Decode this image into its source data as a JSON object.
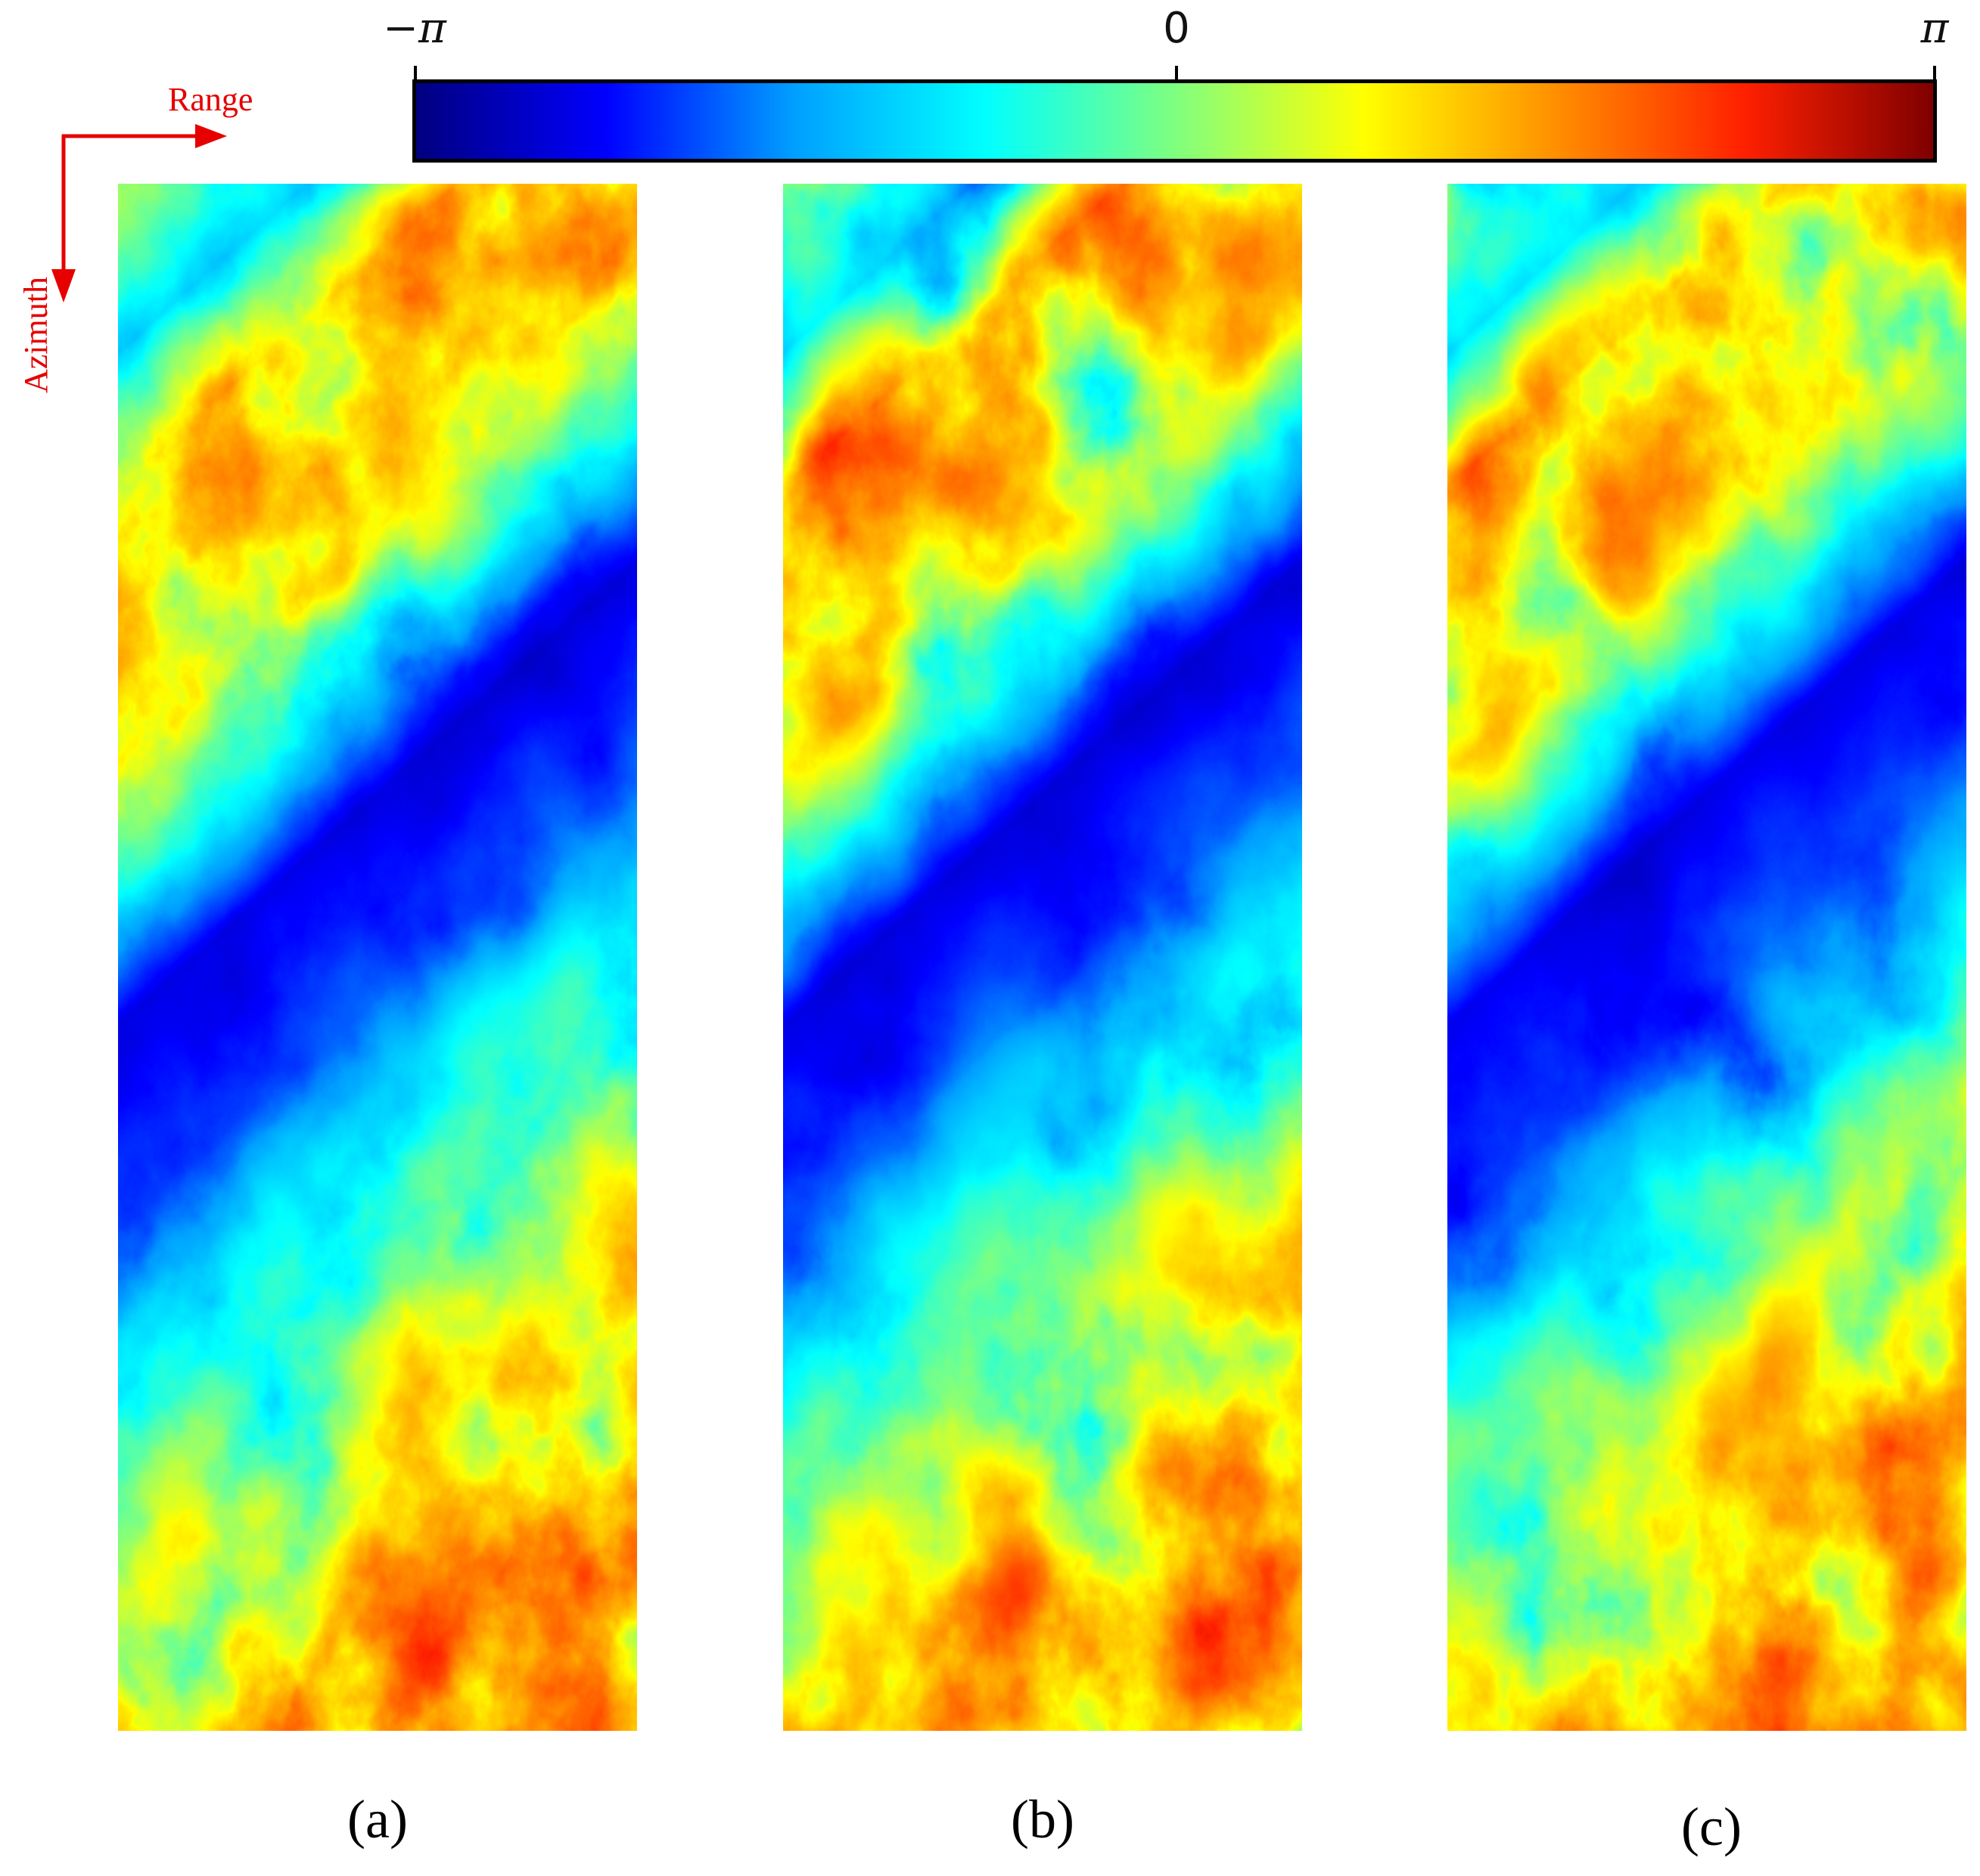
{
  "colorbar": {
    "min_label": "−π",
    "mid_label": "0",
    "max_label": "π",
    "colormap": "jet",
    "colors": [
      "#00007f",
      "#0000ff",
      "#00a0ff",
      "#00ffff",
      "#7fff7f",
      "#ffff00",
      "#ff9000",
      "#ff2000",
      "#7f0000"
    ]
  },
  "axes_indicator": {
    "range_label": "Range",
    "azimuth_label": "Azimuth",
    "color": "#e60000"
  },
  "panels": [
    {
      "label": "(a)"
    },
    {
      "label": "(b)"
    },
    {
      "label": "(c)"
    }
  ]
}
